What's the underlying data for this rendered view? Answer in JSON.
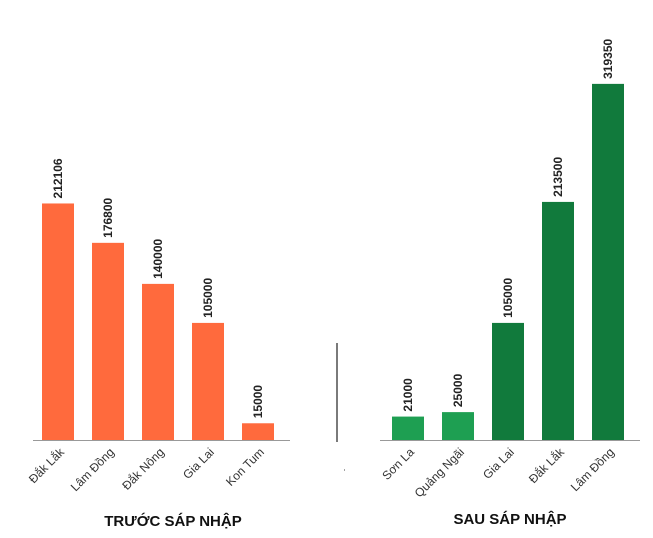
{
  "chart_data": {
    "type": "bar",
    "ylim": [
      0,
      330000
    ],
    "groups": [
      {
        "title": "TRƯỚC SÁP NHẬP",
        "color": "#ff6a3d",
        "categories": [
          "Đắk Lắk",
          "Lâm Đồng",
          "Đắk Nông",
          "Gia Lai",
          "Kon Tum"
        ],
        "values": [
          212106,
          176800,
          140000,
          105000,
          15000
        ]
      },
      {
        "title": "SAU SÁP NHẬP",
        "color": "#1e9f52",
        "categories": [
          "Sơn La",
          "Quảng Ngãi",
          "Gia Lai",
          "Đắk Lắk",
          "Lâm Đồng"
        ],
        "values": [
          21000,
          25000,
          105000,
          213500,
          319350
        ],
        "colors": [
          "#1e9f52",
          "#1e9f52",
          "#117a3c",
          "#117a3c",
          "#117a3c"
        ]
      }
    ],
    "divider": "vertical-line",
    "grid": false,
    "legend": "none"
  }
}
